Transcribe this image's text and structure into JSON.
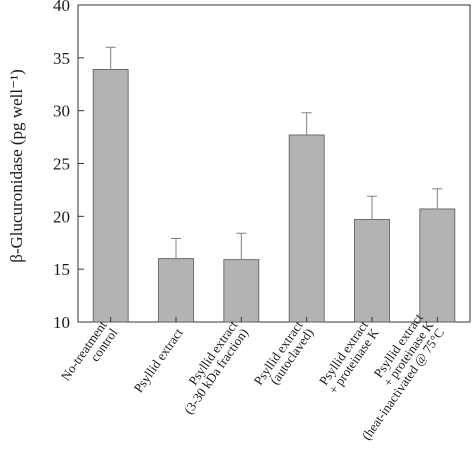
{
  "chart_data": {
    "type": "bar",
    "title": "",
    "xlabel": "",
    "ylabel": "β-Glucuronidase (pg well⁻¹)",
    "ylim": [
      10,
      40
    ],
    "yticks": [
      10,
      15,
      20,
      25,
      30,
      35,
      40
    ],
    "grid": false,
    "categories": [
      [
        "No-treatment",
        "control"
      ],
      [
        "Psyllid extract"
      ],
      [
        "Psyllid extract",
        "(3-30 kDa fraction)"
      ],
      [
        "Psyllid extract",
        "(autoclaved)"
      ],
      [
        "Psyllid extract",
        "+ proteinase K"
      ],
      [
        "Psyllid extract",
        "+ proteinase K",
        "(heat-inactivated @ 75°C"
      ]
    ],
    "values": [
      33.9,
      16.0,
      15.9,
      27.7,
      19.7,
      20.7
    ],
    "errors": [
      2.1,
      1.9,
      2.5,
      2.1,
      2.2,
      1.9
    ],
    "colors": {
      "bar": "#b3b3b3",
      "bar_edge": "#555555",
      "axis": "#333333",
      "error": "#7f7f7f"
    }
  }
}
